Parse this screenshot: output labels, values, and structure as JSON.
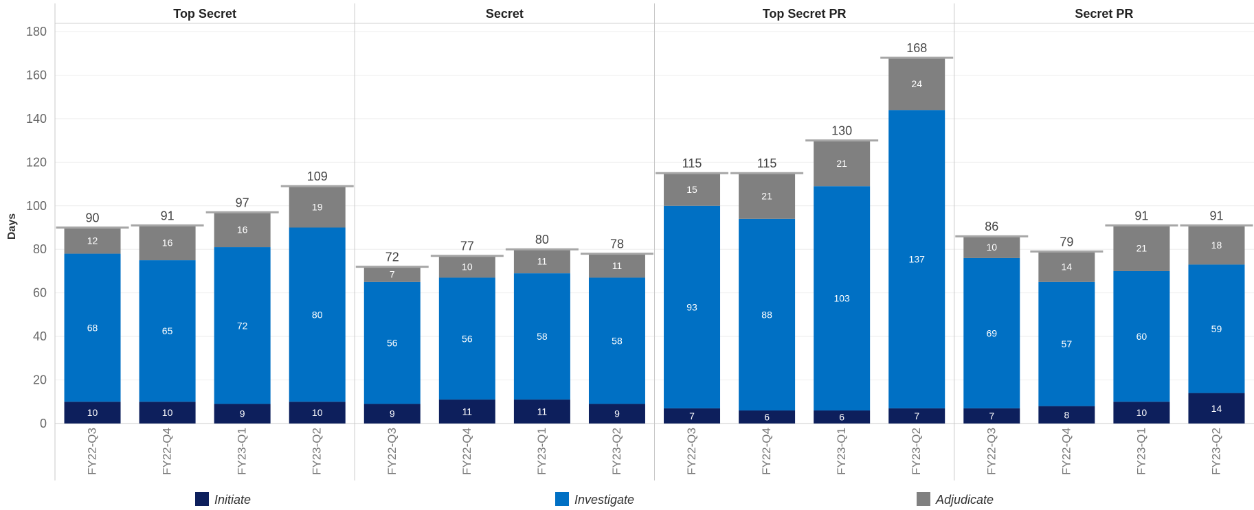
{
  "chart_data": {
    "type": "bar",
    "stacked": true,
    "ylabel": "Days",
    "ylim": [
      0,
      180
    ],
    "yticks": [
      0,
      20,
      40,
      60,
      80,
      100,
      120,
      140,
      160,
      180
    ],
    "grid": true,
    "legend_position": "bottom",
    "categories": [
      "FY22-Q3",
      "FY22-Q4",
      "FY23-Q1",
      "FY23-Q2"
    ],
    "series_names": [
      "Initiate",
      "Investigate",
      "Adjudicate"
    ],
    "colors": {
      "Initiate": "#0d1f5c",
      "Investigate": "#0070c4",
      "Adjudicate": "#808080"
    },
    "panels": [
      {
        "title": "Top Secret",
        "bars": [
          {
            "category": "FY22-Q3",
            "total": 90,
            "Initiate": 10,
            "Investigate": 68,
            "Adjudicate": 12
          },
          {
            "category": "FY22-Q4",
            "total": 91,
            "Initiate": 10,
            "Investigate": 65,
            "Adjudicate": 16
          },
          {
            "category": "FY23-Q1",
            "total": 97,
            "Initiate": 9,
            "Investigate": 72,
            "Adjudicate": 16
          },
          {
            "category": "FY23-Q2",
            "total": 109,
            "Initiate": 10,
            "Investigate": 80,
            "Adjudicate": 19
          }
        ]
      },
      {
        "title": "Secret",
        "bars": [
          {
            "category": "FY22-Q3",
            "total": 72,
            "Initiate": 9,
            "Investigate": 56,
            "Adjudicate": 7
          },
          {
            "category": "FY22-Q4",
            "total": 77,
            "Initiate": 11,
            "Investigate": 56,
            "Adjudicate": 10
          },
          {
            "category": "FY23-Q1",
            "total": 80,
            "Initiate": 11,
            "Investigate": 58,
            "Adjudicate": 11
          },
          {
            "category": "FY23-Q2",
            "total": 78,
            "Initiate": 9,
            "Investigate": 58,
            "Adjudicate": 11
          }
        ]
      },
      {
        "title": "Top Secret PR",
        "bars": [
          {
            "category": "FY22-Q3",
            "total": 115,
            "Initiate": 7,
            "Investigate": 93,
            "Adjudicate": 15
          },
          {
            "category": "FY22-Q4",
            "total": 115,
            "Initiate": 6,
            "Investigate": 88,
            "Adjudicate": 21
          },
          {
            "category": "FY23-Q1",
            "total": 130,
            "Initiate": 6,
            "Investigate": 103,
            "Adjudicate": 21
          },
          {
            "category": "FY23-Q2",
            "total": 168,
            "Initiate": 7,
            "Investigate": 137,
            "Adjudicate": 24
          }
        ]
      },
      {
        "title": "Secret PR",
        "bars": [
          {
            "category": "FY22-Q3",
            "total": 86,
            "Initiate": 7,
            "Investigate": 69,
            "Adjudicate": 10
          },
          {
            "category": "FY22-Q4",
            "total": 79,
            "Initiate": 8,
            "Investigate": 57,
            "Adjudicate": 14
          },
          {
            "category": "FY23-Q1",
            "total": 91,
            "Initiate": 10,
            "Investigate": 60,
            "Adjudicate": 21
          },
          {
            "category": "FY23-Q2",
            "total": 91,
            "Initiate": 14,
            "Investigate": 59,
            "Adjudicate": 18
          }
        ]
      }
    ]
  }
}
